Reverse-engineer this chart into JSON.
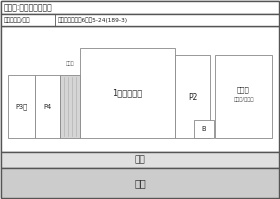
{
  "bg_color": "#ffffff",
  "border_color": "#888888",
  "dark_border": "#555555",
  "road_color": "#cccccc",
  "sidewalk_color": "#e0e0e0",
  "title_line1": "建物名:コルデソル下関",
  "addr_label": "物件所在地/地番",
  "addr_value": "下関市上田中町6丁目5-24(189-3)",
  "road_text": "道路",
  "sidewalk_text": "歩道",
  "p3_label": "P3駐",
  "p4_label": "P4",
  "tenant_label": "1階テナント",
  "p2_label": "P2",
  "bike_label1": "駐輪場",
  "bike_label2": "自転車/バイク",
  "b_label": "B",
  "outer_lw": 1.0,
  "inner_lw": 0.6
}
